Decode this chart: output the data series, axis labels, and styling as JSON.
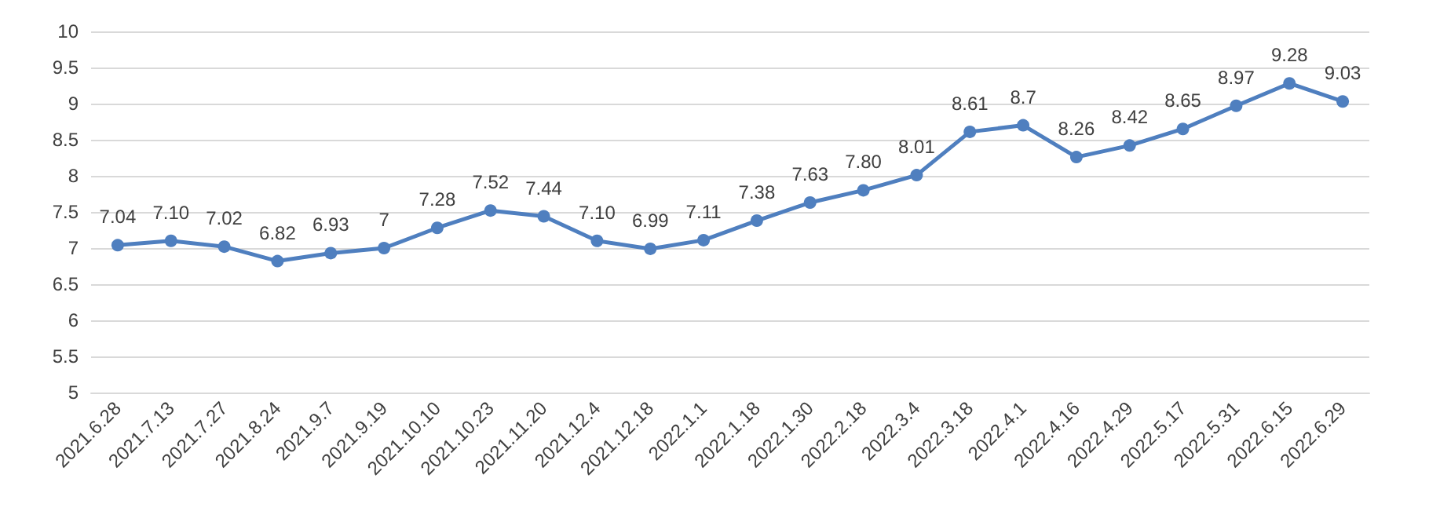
{
  "chart_data": {
    "type": "line",
    "categories": [
      "2021.6.28",
      "2021.7.13",
      "2021.7.27",
      "2021.8.24",
      "2021.9.7",
      "2021.9.19",
      "2021.10.10",
      "2021.10.23",
      "2021.11.20",
      "2021.12.4",
      "2021.12.18",
      "2022.1.1",
      "2022.1.18",
      "2022.1.30",
      "2022.2.18",
      "2022.3.4",
      "2022.3.18",
      "2022.4.1",
      "2022.4.16",
      "2022.4.29",
      "2022.5.17",
      "2022.5.31",
      "2022.6.15",
      "2022.6.29"
    ],
    "series": [
      {
        "color": "#4f7fbf",
        "values": [
          7.04,
          7.1,
          7.02,
          6.82,
          6.93,
          7,
          7.28,
          7.52,
          7.44,
          7.1,
          6.99,
          7.11,
          7.38,
          7.63,
          7.8,
          8.01,
          8.61,
          8.7,
          8.26,
          8.42,
          8.65,
          8.97,
          9.28,
          9.03
        ],
        "value_labels": [
          "7.04",
          "7.10",
          "7.02",
          "6.82",
          "6.93",
          "7",
          "7.28",
          "7.52",
          "7.44",
          "7.10",
          "6.99",
          "7.11",
          "7.38",
          "7.63",
          "7.80",
          "8.01",
          "8.61",
          "8.7",
          "8.26",
          "8.42",
          "8.65",
          "8.97",
          "9.28",
          "9.03"
        ]
      }
    ],
    "ylim": [
      5,
      10
    ],
    "yticks": [
      5,
      5.5,
      6,
      6.5,
      7,
      7.5,
      8,
      8.5,
      9,
      9.5,
      10
    ],
    "grid": "y",
    "marker": "circle",
    "line_style": "solid"
  }
}
